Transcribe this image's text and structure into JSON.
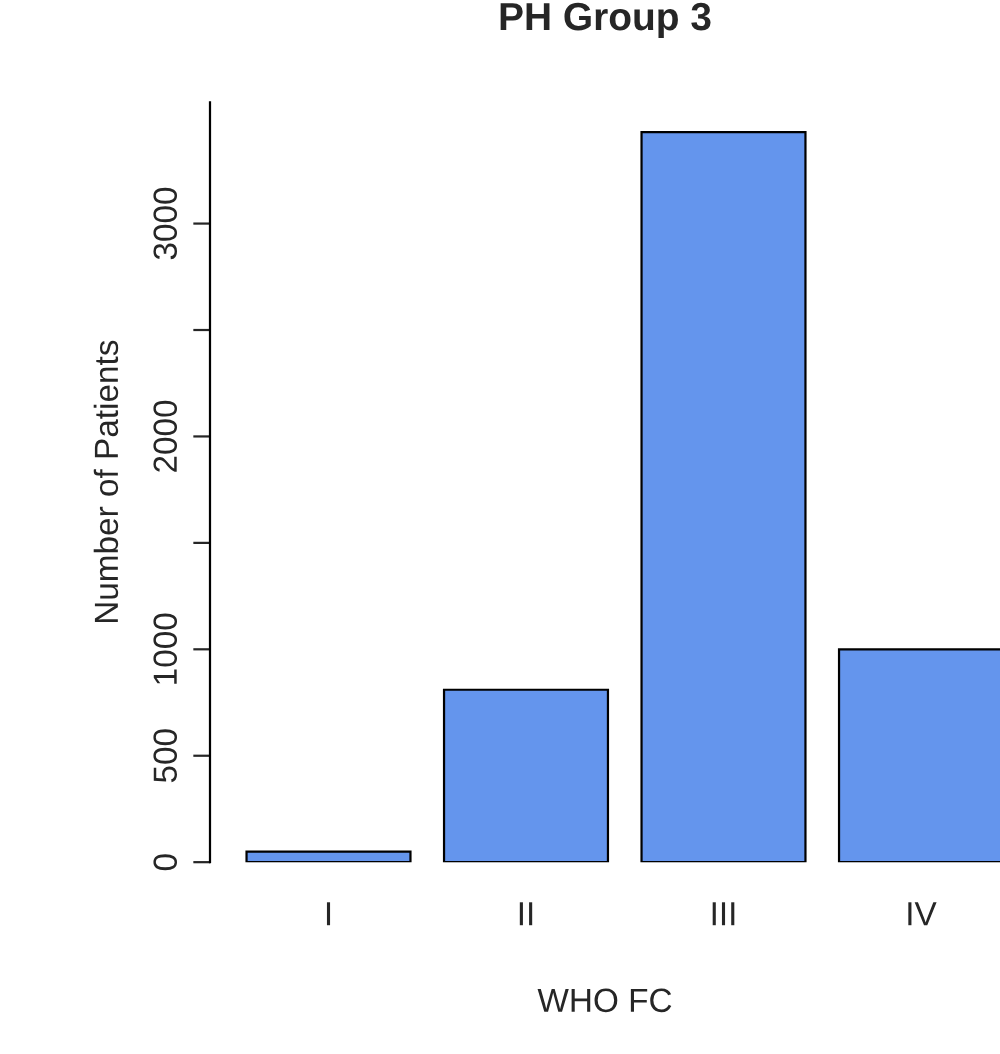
{
  "chart_data": {
    "type": "bar",
    "title": "PH Group 3",
    "xlabel": "WHO FC",
    "ylabel": "Number of Patients",
    "categories": [
      "I",
      "II",
      "III",
      "IV"
    ],
    "values": [
      50,
      810,
      3430,
      1000
    ],
    "color": "#6495ed",
    "ylim": [
      0,
      3570
    ],
    "yticks": [
      0,
      500,
      1000,
      {
        "value": 1500,
        "label": null
      },
      2000,
      {
        "value": 2500,
        "label": null
      },
      3000
    ],
    "grid": false,
    "legend": false
  }
}
